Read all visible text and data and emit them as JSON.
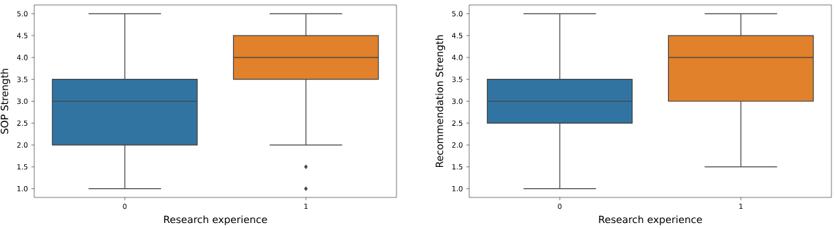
{
  "chart_data": [
    {
      "type": "box",
      "categories": [
        "0",
        "1"
      ],
      "xlabel": "Research experience",
      "ylabel": "SOP Strength",
      "colors": [
        "#3274a1",
        "#e1812c"
      ],
      "boxes": [
        {
          "low": 1.0,
          "q1": 2.0,
          "median": 3.0,
          "q3": 3.5,
          "high": 5.0
        },
        {
          "low": 2.0,
          "q1": 3.5,
          "median": 4.0,
          "q3": 4.5,
          "high": 5.0,
          "outliers": [
            1.5,
            1.0
          ]
        }
      ],
      "ylim": [
        0.8,
        5.2
      ],
      "yticks": [
        {
          "value": 1.0,
          "label": "1.0"
        },
        {
          "value": 1.5,
          "label": "1.5"
        },
        {
          "value": 2.0,
          "label": "2.0"
        },
        {
          "value": 2.5,
          "label": "2.5"
        },
        {
          "value": 3.0,
          "label": "3.0"
        },
        {
          "value": 3.5,
          "label": "3.5"
        },
        {
          "value": 4.0,
          "label": "4.0"
        },
        {
          "value": 4.5,
          "label": "4.5"
        },
        {
          "value": 5.0,
          "label": "5.0"
        }
      ],
      "marker": "diamond"
    },
    {
      "type": "box",
      "categories": [
        "0",
        "1"
      ],
      "xlabel": "Research experience",
      "ylabel": "Recommendation Strength",
      "colors": [
        "#3274a1",
        "#e1812c"
      ],
      "boxes": [
        {
          "low": 1.0,
          "q1": 2.5,
          "median": 3.0,
          "q3": 3.5,
          "high": 5.0
        },
        {
          "low": 1.5,
          "q1": 3.0,
          "median": 4.0,
          "q3": 4.5,
          "high": 5.0
        }
      ],
      "ylim": [
        0.8,
        5.2
      ],
      "yticks": [
        {
          "value": 1.0,
          "label": "1.0"
        },
        {
          "value": 1.5,
          "label": "1.5"
        },
        {
          "value": 2.0,
          "label": "2.0"
        },
        {
          "value": 2.5,
          "label": "2.5"
        },
        {
          "value": 3.0,
          "label": "3.0"
        },
        {
          "value": 3.5,
          "label": "3.5"
        },
        {
          "value": 4.0,
          "label": "4.0"
        },
        {
          "value": 4.5,
          "label": "4.5"
        },
        {
          "value": 5.0,
          "label": "5.0"
        }
      ],
      "marker": "diamond"
    }
  ]
}
